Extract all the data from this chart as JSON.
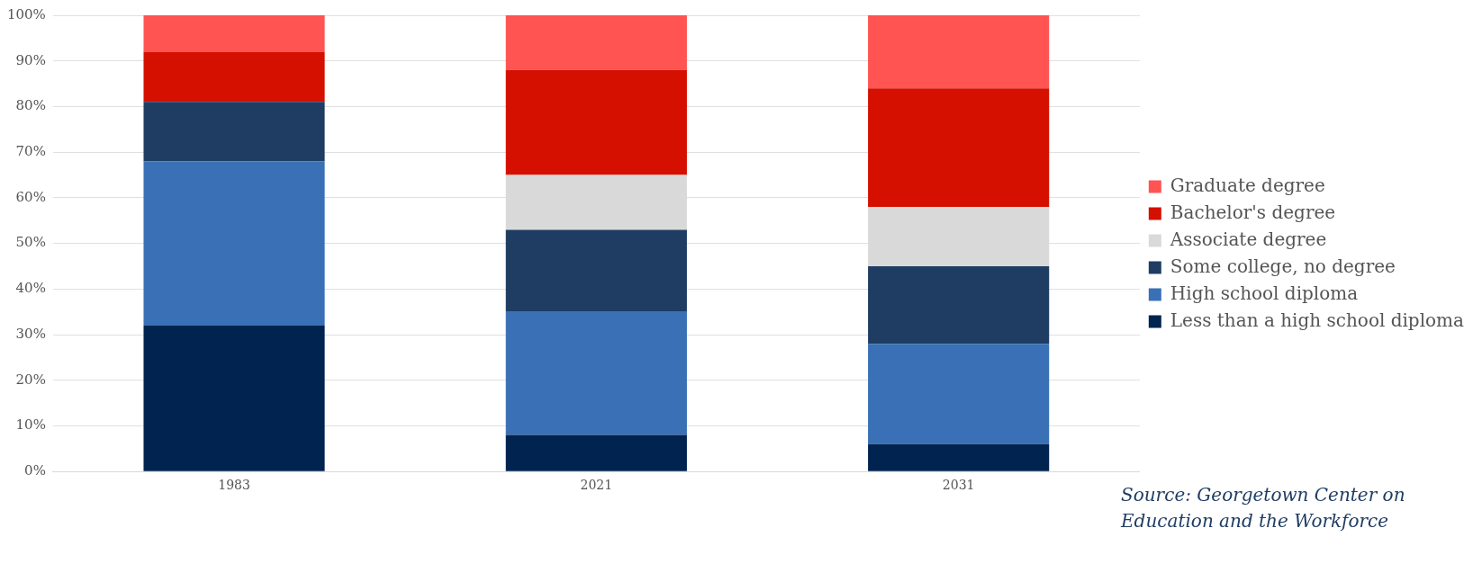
{
  "chart_data": {
    "type": "bar",
    "stacked": true,
    "categories": [
      "1983",
      "2021",
      "2031"
    ],
    "series": [
      {
        "name": "Less than a high school diploma",
        "color": "#00234f",
        "values": [
          32,
          8,
          6
        ]
      },
      {
        "name": "High school diploma",
        "color": "#3a70b5",
        "values": [
          36,
          27,
          22
        ]
      },
      {
        "name": "Some college, no degree",
        "color": "#1f3d63",
        "values": [
          13,
          18,
          17
        ]
      },
      {
        "name": "Associate degree",
        "color": "#d9d9d9",
        "values": [
          0,
          12,
          13
        ]
      },
      {
        "name": "Bachelor's degree",
        "color": "#d51000",
        "values": [
          11,
          23,
          26
        ]
      },
      {
        "name": "Graduate degree",
        "color": "#ff5452",
        "values": [
          8,
          12,
          16
        ]
      }
    ],
    "ylim": [
      0,
      100
    ],
    "yticks": [
      {
        "value": 0,
        "label": "0%"
      },
      {
        "value": 10,
        "label": "10%"
      },
      {
        "value": 20,
        "label": "20%"
      },
      {
        "value": 30,
        "label": "30%"
      },
      {
        "value": 40,
        "label": "40%"
      },
      {
        "value": 50,
        "label": "50%"
      },
      {
        "value": 60,
        "label": "60%"
      },
      {
        "value": 70,
        "label": "70%"
      },
      {
        "value": 80,
        "label": "80%"
      },
      {
        "value": 90,
        "label": "90%"
      },
      {
        "value": 100,
        "label": "100%"
      }
    ],
    "grid": "y",
    "legend": "right",
    "annotations": [
      "Source: Georgetown Center on Education and the Workforce"
    ]
  }
}
